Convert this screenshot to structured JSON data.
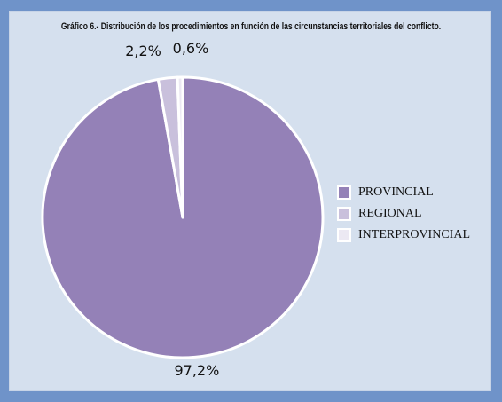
{
  "chart_data": {
    "type": "pie",
    "title": "Gráfico 6.- Distribución de los procedimientos en función de las circunstancias territoriales del conflicto.",
    "slices": [
      {
        "name": "PROVINCIAL",
        "value": 97.2,
        "label": "97,2%",
        "color": "#9481b7"
      },
      {
        "name": "REGIONAL",
        "value": 2.2,
        "label": "2,2%",
        "color": "#c9c0dc"
      },
      {
        "name": "INTERPROVINCIAL",
        "value": 0.6,
        "label": "0,6%",
        "color": "#ece9f3"
      }
    ],
    "legend_position": "right"
  },
  "colors": {
    "frame": "#6f93c9",
    "panel": "#d5e0ee",
    "slice_border": "#ffffff"
  }
}
